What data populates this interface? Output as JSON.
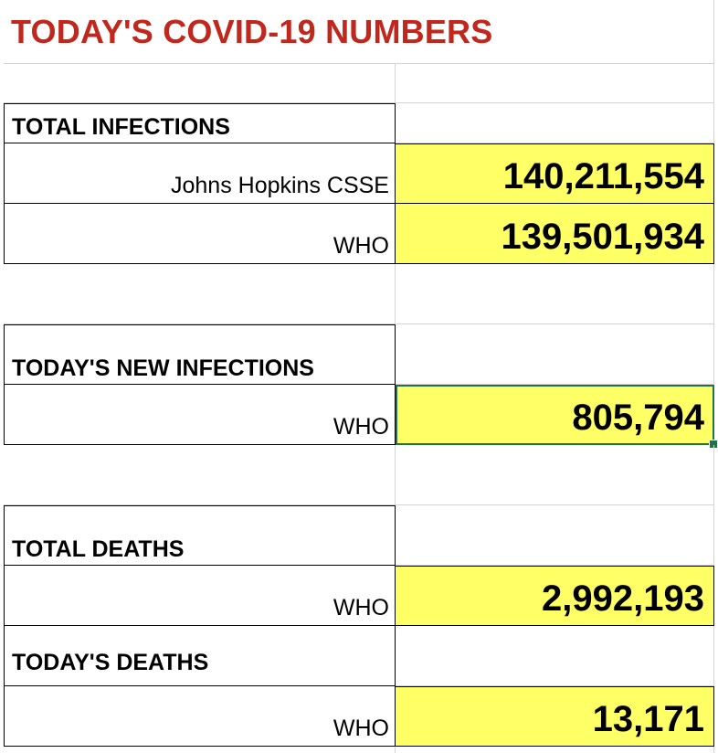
{
  "title": "TODAY'S COVID-19 NUMBERS",
  "sections": {
    "total_infections": {
      "label": "TOTAL INFECTIONS",
      "rows": [
        {
          "source": "Johns Hopkins CSSE",
          "value": "140,211,554"
        },
        {
          "source": "WHO",
          "value": "139,501,934"
        }
      ]
    },
    "new_infections": {
      "label": "TODAY'S NEW INFECTIONS",
      "rows": [
        {
          "source": "WHO",
          "value": "805,794"
        }
      ]
    },
    "total_deaths": {
      "label": "TOTAL DEATHS",
      "rows": [
        {
          "source": "WHO",
          "value": "2,992,193"
        }
      ]
    },
    "todays_deaths": {
      "label": "TODAY'S DEATHS",
      "rows": [
        {
          "source": "WHO",
          "value": "13,171"
        }
      ]
    }
  },
  "colors": {
    "title": "#c0281d",
    "highlight": "#ffff66",
    "selection": "#217346"
  }
}
